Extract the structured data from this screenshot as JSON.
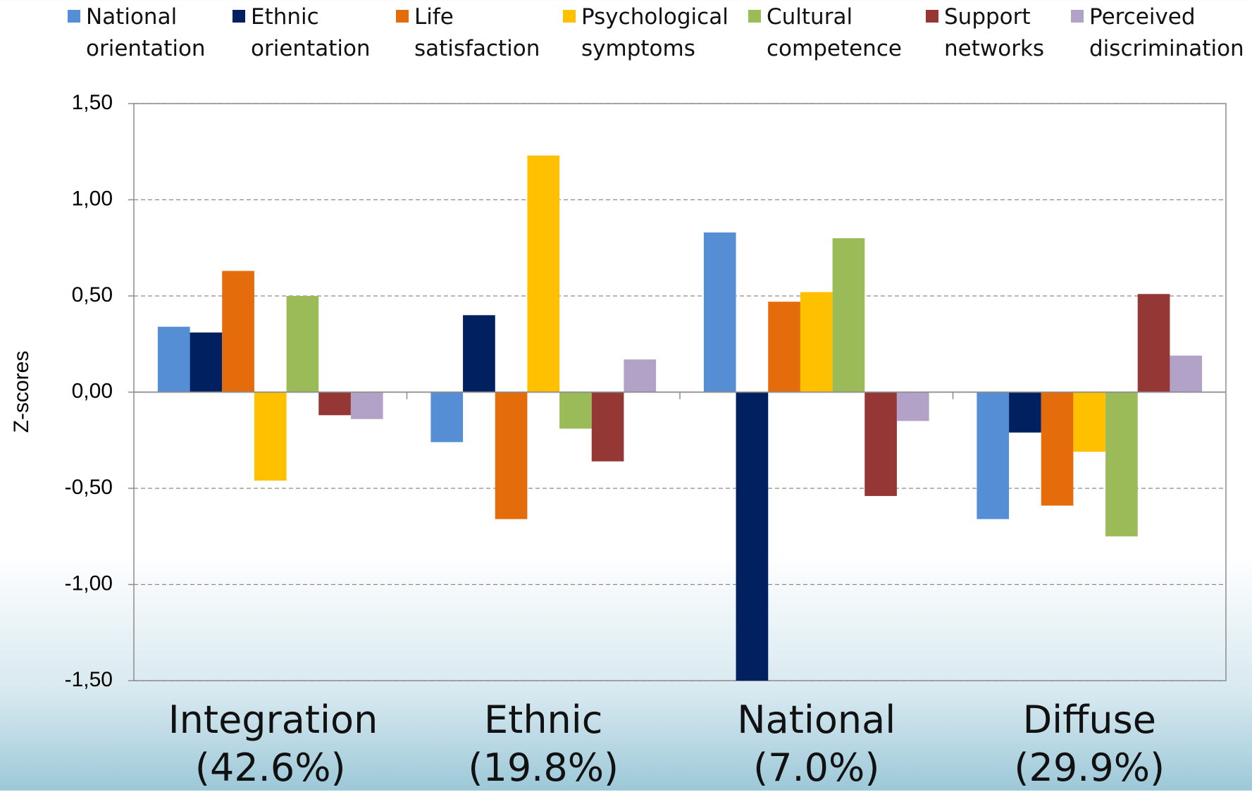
{
  "chart_data": {
    "type": "bar",
    "categories": [
      "Integration (42.6%)",
      "Ethnic (19.8%)",
      "National (7.0%)",
      "Diffuse (29.9%)"
    ],
    "y_label": "Z-scores",
    "series": [
      {
        "name": "National orientation",
        "color": "#558ed5",
        "values": [
          0.34,
          -0.26,
          0.83,
          -0.66
        ]
      },
      {
        "name": "Ethnic orientation",
        "color": "#002060",
        "values": [
          0.31,
          0.4,
          -1.5,
          -0.21
        ]
      },
      {
        "name": "Life satisfaction",
        "color": "#e46c0a",
        "values": [
          0.63,
          -0.66,
          0.47,
          -0.59
        ]
      },
      {
        "name": "Psychological symptoms",
        "color": "#ffc000",
        "values": [
          -0.46,
          1.23,
          0.52,
          -0.31
        ]
      },
      {
        "name": "Cultural competence",
        "color": "#9bbb59",
        "values": [
          0.5,
          -0.19,
          0.8,
          -0.75
        ]
      },
      {
        "name": "Support networks",
        "color": "#953735",
        "values": [
          -0.12,
          -0.36,
          -0.54,
          0.51
        ]
      },
      {
        "name": "Perceived discrimination",
        "color": "#b3a2c7",
        "values": [
          -0.14,
          0.17,
          -0.15,
          0.19
        ]
      }
    ],
    "ylim": [
      -1.5,
      1.5
    ],
    "yticks": [
      {
        "value": -1.5,
        "label": "-1,50"
      },
      {
        "value": -1.0,
        "label": "-1,00"
      },
      {
        "value": -0.5,
        "label": "-0,50"
      },
      {
        "value": 0,
        "label": "0,00"
      },
      {
        "value": 0.5,
        "label": "0,50"
      },
      {
        "value": 1.0,
        "label": "1,00"
      },
      {
        "value": 1.5,
        "label": "1,50"
      }
    ],
    "grid": true
  }
}
